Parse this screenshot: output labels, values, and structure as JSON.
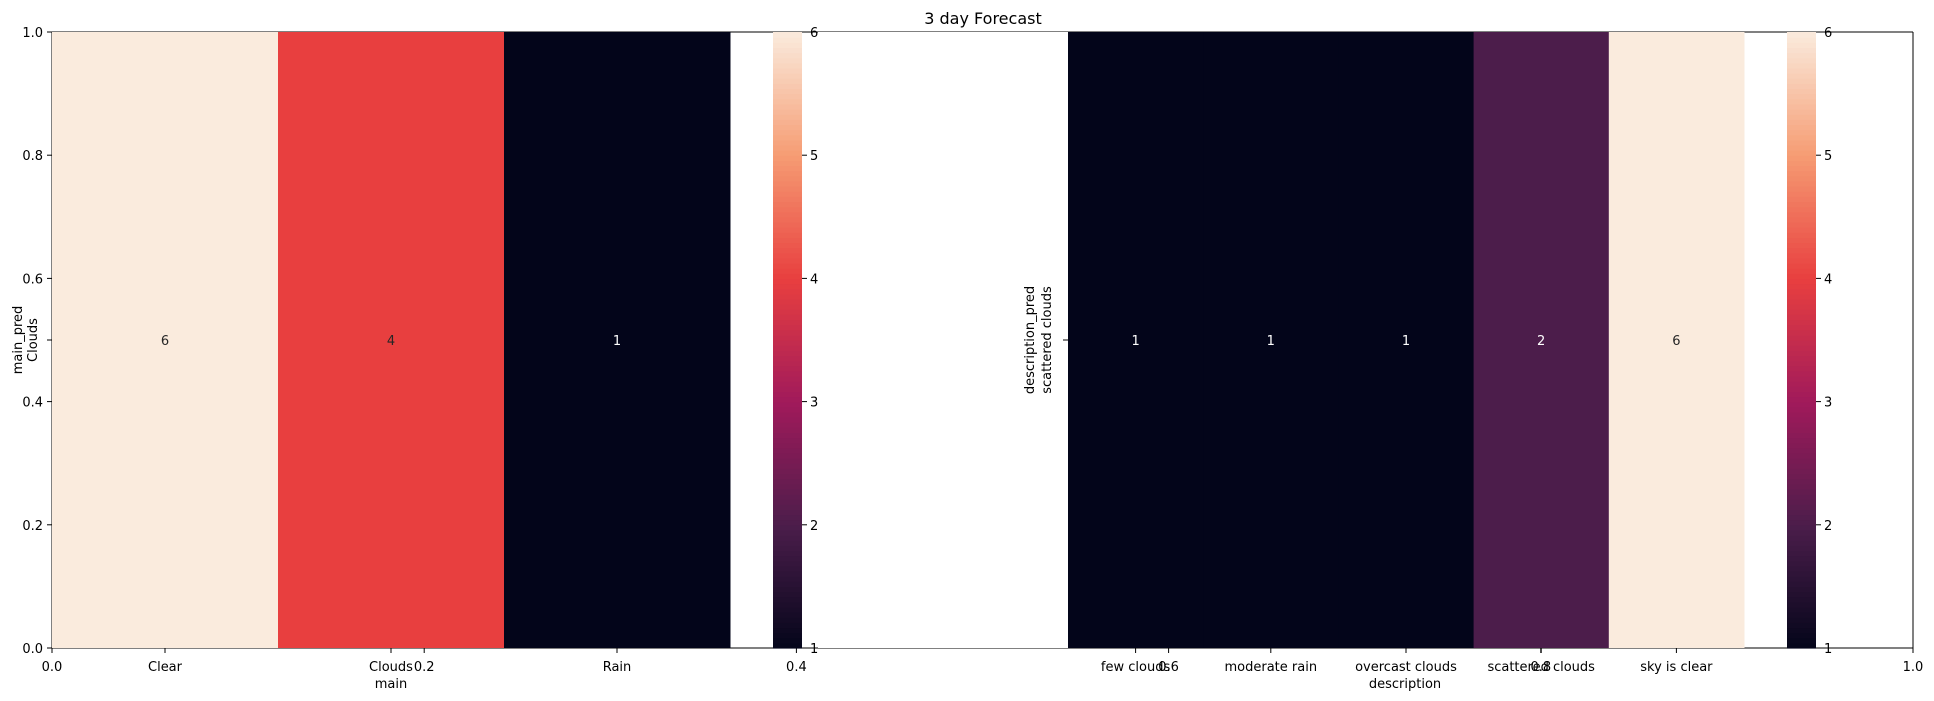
{
  "figure": {
    "title": "3 day Forecast",
    "overlay_axis": {
      "xticks": [
        0.0,
        0.2,
        0.4,
        0.6,
        0.8,
        1.0
      ],
      "xtick_labels": [
        "0.0",
        "0.2",
        "0.4",
        "0.6",
        "0.8",
        "1.0"
      ],
      "yticks": [
        0.0,
        0.2,
        0.4,
        0.6,
        0.8,
        1.0
      ],
      "ytick_labels": [
        "0.0",
        "0.2",
        "0.4",
        "0.6",
        "0.8",
        "1.0"
      ],
      "xlim": [
        0,
        1
      ],
      "ylim": [
        0,
        1
      ]
    }
  },
  "chart_data": [
    {
      "type": "heatmap",
      "title": "",
      "xlabel": "main",
      "ylabel": "main_pred",
      "x_categories": [
        "Clear",
        "Clouds",
        "Rain"
      ],
      "y_categories": [
        "Clouds"
      ],
      "values": [
        [
          6,
          4,
          1
        ]
      ],
      "annotations": true,
      "colormap": "rocket",
      "colorbar": {
        "vmin": 1,
        "vmax": 6,
        "ticks": [
          1,
          2,
          3,
          4,
          5,
          6
        ],
        "tick_labels": [
          "1",
          "2",
          "3",
          "4",
          "5",
          "6"
        ]
      }
    },
    {
      "type": "heatmap",
      "title": "",
      "xlabel": "description",
      "ylabel": "description_pred",
      "x_categories": [
        "few clouds",
        "moderate rain",
        "overcast clouds",
        "scattered clouds",
        "sky is clear"
      ],
      "y_categories": [
        "scattered clouds"
      ],
      "values": [
        [
          1,
          1,
          1,
          2,
          6
        ]
      ],
      "annotations": true,
      "colormap": "rocket",
      "colorbar": {
        "vmin": 1,
        "vmax": 6,
        "ticks": [
          1,
          2,
          3,
          4,
          5,
          6
        ],
        "tick_labels": [
          "1",
          "2",
          "3",
          "4",
          "5",
          "6"
        ]
      }
    }
  ],
  "colors": {
    "background": "#ffffff",
    "axis": "#000000",
    "text": "#000000",
    "rocket_stops": [
      "#03051a",
      "#4c1d4b",
      "#a11a5b",
      "#e83f3f",
      "#f69c73",
      "#faebdd"
    ]
  }
}
